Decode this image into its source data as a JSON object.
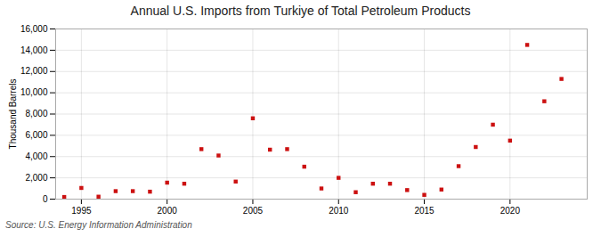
{
  "chart_data": {
    "type": "scatter",
    "title": "Annual U.S. Imports from Turkiye of Total Petroleum Products",
    "ylabel": "Thousand Barrels",
    "source": "Source: U.S. Energy Information Administration",
    "x": [
      1994,
      1995,
      1996,
      1997,
      1998,
      1999,
      2000,
      2001,
      2002,
      2003,
      2004,
      2005,
      2006,
      2007,
      2008,
      2009,
      2010,
      2011,
      2012,
      2013,
      2014,
      2015,
      2016,
      2017,
      2018,
      2019,
      2020,
      2021,
      2022,
      2023
    ],
    "values": [
      200,
      1050,
      230,
      750,
      750,
      700,
      1550,
      1450,
      4700,
      4100,
      1650,
      7600,
      4650,
      4700,
      3050,
      1000,
      2000,
      650,
      1450,
      1450,
      850,
      400,
      900,
      3100,
      4900,
      7000,
      5500,
      14500,
      9200,
      11300
    ],
    "color": "#cc1111",
    "marker": "square",
    "xlim": [
      1993.5,
      2024.5
    ],
    "xticks": [
      1995,
      2000,
      2005,
      2010,
      2015,
      2020
    ],
    "ylim": [
      0,
      16000
    ],
    "yticks": [
      0,
      {
        "value": 2000,
        "label": "2,000"
      },
      {
        "value": 4000,
        "label": "4,000"
      },
      {
        "value": 6000,
        "label": "6,000"
      },
      {
        "value": 8000,
        "label": "8,000"
      },
      {
        "value": 10000,
        "label": "10,000"
      },
      {
        "value": 12000,
        "label": "12,000"
      },
      {
        "value": 14000,
        "label": "14,000"
      },
      {
        "value": 16000,
        "label": "16,000"
      }
    ],
    "grid": true
  }
}
